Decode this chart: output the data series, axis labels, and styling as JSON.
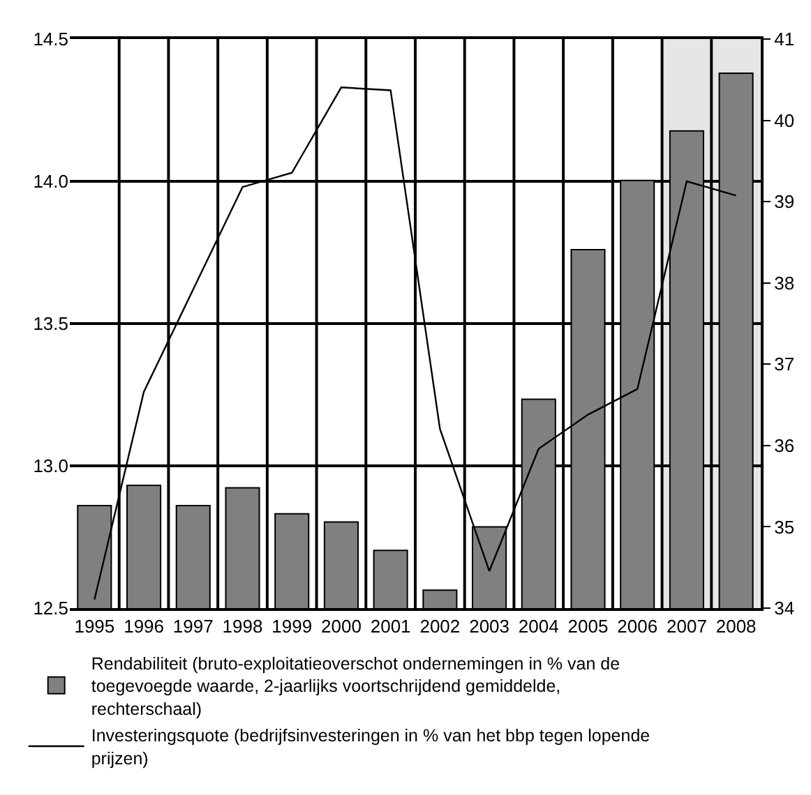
{
  "chart_data": {
    "type": "bar",
    "categories": [
      "1995",
      "1996",
      "1997",
      "1998",
      "1999",
      "2000",
      "2001",
      "2002",
      "2003",
      "2004",
      "2005",
      "2006",
      "2007",
      "2008"
    ],
    "series": [
      {
        "name": "Rendabiliteit (bruto-exploitatieoverschot ondernemingen in % van de toegevoegde waarde, 2-jaarlijks voortschrijdend gemiddelde, rechterschaal)",
        "axis": "y2",
        "color": "#808080",
        "values": [
          35.26,
          35.51,
          35.26,
          35.48,
          35.16,
          35.06,
          34.71,
          34.22,
          35.0,
          36.57,
          38.41,
          39.26,
          39.87,
          40.58
        ]
      },
      {
        "name": "Investeringsquote (bedrijfsinvesteringen in % van het bbp tegen lopende prijzen)",
        "type": "line",
        "color": "#000000",
        "values": [
          12.53,
          13.26,
          13.62,
          13.98,
          14.03,
          14.33,
          14.32,
          13.13,
          12.63,
          13.06,
          13.18,
          13.27,
          14.0,
          13.95
        ]
      }
    ],
    "ylim": [
      12.5,
      14.5
    ],
    "yticks": [
      "12.5",
      {
        "value": 13,
        "label": "13.0"
      },
      "13.5",
      {
        "value": 14,
        "label": "14.0"
      },
      "14.5"
    ],
    "y2lim": [
      34,
      41
    ],
    "y2ticks": [
      34,
      35,
      36,
      37,
      38,
      39,
      40,
      41
    ],
    "bands": [
      {
        "axis": "x",
        "from": "2007",
        "to": "2008",
        "color": "#e6e6e6"
      }
    ],
    "grid": true,
    "legend": "bottom",
    "marker": "none",
    "line_style": "solid"
  }
}
